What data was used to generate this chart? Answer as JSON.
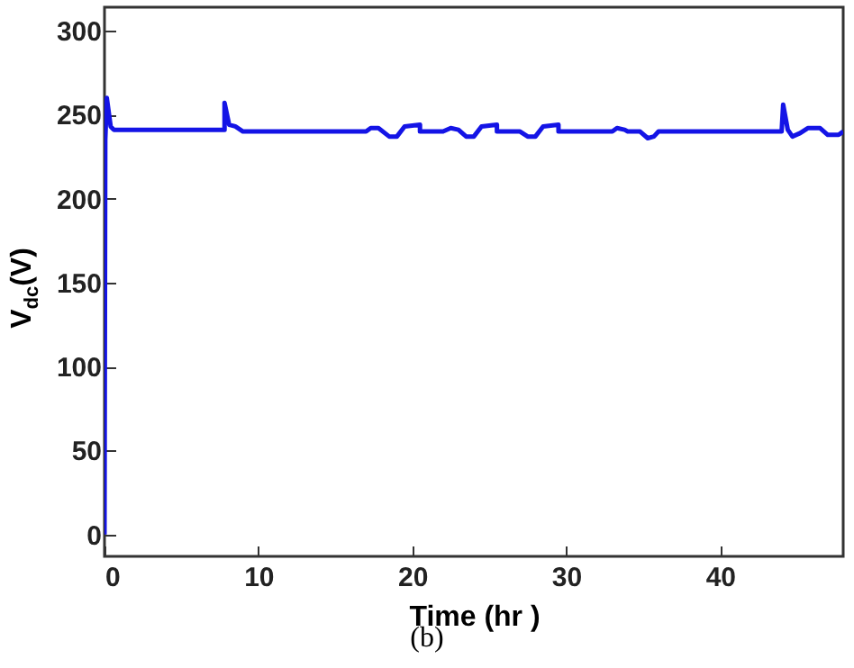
{
  "chart_data": {
    "type": "line",
    "xlabel": "Time (hr )",
    "ylabel": "V$_{dc}$(V)",
    "annotations": [
      "(b)"
    ],
    "xlim": [
      0,
      48
    ],
    "ylim": [
      -13,
      314
    ],
    "xticks": [
      0,
      10,
      20,
      30,
      40
    ],
    "yticks": [
      0,
      50,
      100,
      150,
      200,
      250,
      300
    ],
    "grid": false,
    "x": [
      0,
      0.05,
      0.15,
      0.4,
      0.6,
      7.8,
      7.8,
      8.1,
      8.5,
      9,
      17,
      17.3,
      17.8,
      18.5,
      19,
      19.5,
      20.5,
      20.5,
      22,
      22.5,
      23,
      23.5,
      24,
      24.5,
      25.5,
      25.5,
      27,
      27.5,
      28,
      28.5,
      29.5,
      29.5,
      33,
      33.3,
      33.8,
      34,
      34.8,
      35.3,
      35.7,
      36,
      44,
      44.1,
      44.4,
      44.7,
      45.2,
      45.7,
      46.5,
      47,
      47.7,
      48
    ],
    "series": [
      {
        "color": "#1414e6",
        "values": [
          0,
          235,
          260,
          243,
          241,
          241,
          257,
          244,
          243,
          240,
          240,
          242,
          242,
          237,
          237,
          243,
          244,
          240,
          240,
          242,
          241,
          237,
          237,
          243,
          244,
          240,
          240,
          237,
          237,
          243,
          244,
          240,
          240,
          242,
          241,
          240,
          240,
          236,
          237,
          240,
          240,
          256,
          241,
          237,
          239,
          242,
          242,
          238,
          238,
          240
        ]
      }
    ]
  }
}
